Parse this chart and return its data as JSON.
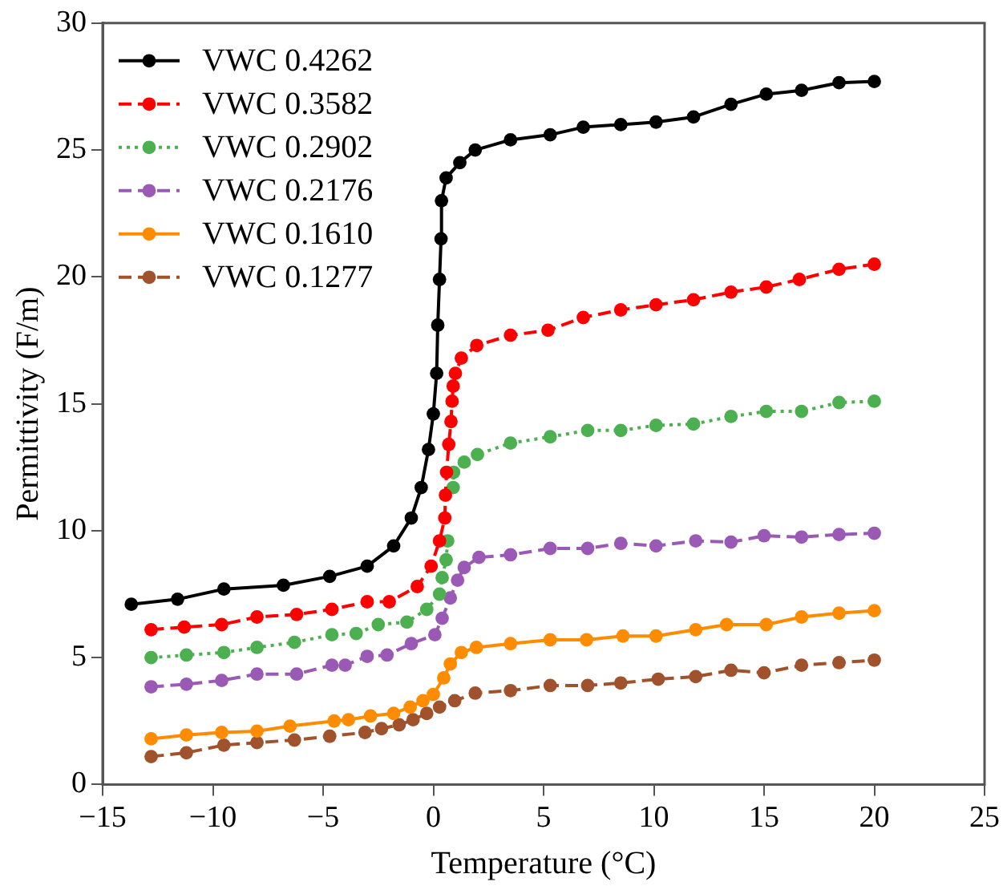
{
  "chart_data": {
    "type": "line",
    "xlabel": "Temperature (°C)",
    "ylabel": "Permittivity (F/m)",
    "xlim": [
      -15,
      25
    ],
    "xticks": [
      -15,
      -10,
      -5,
      0,
      5,
      10,
      15,
      20,
      25
    ],
    "ylim": [
      0,
      30
    ],
    "yticks": [
      0,
      5,
      10,
      15,
      20,
      25,
      30
    ],
    "grid": false,
    "legend": "top left",
    "marker": "circle",
    "series": [
      {
        "name": "VWC 0.4262",
        "color": "#000000",
        "line_style": "solid",
        "x": [
          -13.7,
          -11.6,
          -9.5,
          -6.8,
          -4.7,
          -3.0,
          -1.8,
          -1.0,
          -0.55,
          -0.22,
          0,
          0.15,
          0.2,
          0.28,
          0.35,
          0.37,
          0.58,
          1.2,
          1.9,
          3.5,
          5.3,
          6.8,
          8.5,
          10.1,
          11.8,
          13.5,
          15.1,
          16.7,
          18.4,
          20
        ],
        "values": [
          7.1,
          7.3,
          7.7,
          7.85,
          8.2,
          8.6,
          9.4,
          10.5,
          11.7,
          13.2,
          14.6,
          16.2,
          18.1,
          19.9,
          21.5,
          23.0,
          23.9,
          24.5,
          25.0,
          25.4,
          25.6,
          25.9,
          26.0,
          26.1,
          26.3,
          26.8,
          27.2,
          27.35,
          27.65,
          27.7
        ]
      },
      {
        "name": "VWC 0.3582",
        "color": "#ff0000",
        "line_style": "dashed",
        "x": [
          -12.8,
          -11.3,
          -9.6,
          -8.0,
          -6.2,
          -4.6,
          -3.0,
          -2.0,
          -0.73,
          -0.1,
          0.28,
          0.52,
          0.55,
          0.6,
          0.7,
          0.8,
          0.85,
          0.9,
          1.0,
          1.27,
          1.97,
          3.5,
          5.2,
          6.8,
          8.5,
          10.1,
          11.8,
          13.5,
          15.1,
          16.6,
          18.4,
          20
        ],
        "values": [
          6.1,
          6.2,
          6.3,
          6.6,
          6.7,
          6.9,
          7.2,
          7.2,
          7.8,
          8.6,
          9.6,
          10.5,
          11.4,
          12.3,
          13.4,
          14.3,
          15.1,
          15.7,
          16.2,
          16.8,
          17.3,
          17.7,
          17.9,
          18.4,
          18.7,
          18.9,
          19.1,
          19.4,
          19.6,
          19.9,
          20.3,
          20.5
        ]
      },
      {
        "name": "VWC 0.2902",
        "color": "#4caf50",
        "line_style": "dotted",
        "x": [
          -12.8,
          -11.2,
          -9.5,
          -8.0,
          -6.3,
          -4.6,
          -3.5,
          -2.5,
          -1.2,
          -0.3,
          0.28,
          0.4,
          0.58,
          0.65,
          0.75,
          0.9,
          0.92,
          1.4,
          2.0,
          3.5,
          5.3,
          7.0,
          8.5,
          10.1,
          11.8,
          13.5,
          15.1,
          16.7,
          18.4,
          20
        ],
        "values": [
          5.0,
          5.1,
          5.2,
          5.4,
          5.6,
          5.9,
          5.95,
          6.3,
          6.4,
          6.9,
          7.5,
          8.15,
          8.85,
          9.6,
          null,
          11.7,
          12.3,
          12.7,
          13.0,
          13.45,
          13.7,
          13.95,
          13.95,
          14.15,
          14.2,
          14.5,
          14.7,
          14.7,
          15.05,
          15.1
        ]
      },
      {
        "name": "VWC 0.2176",
        "color": "#9b59b6",
        "line_style": "dashed",
        "x": [
          -12.8,
          -11.2,
          -9.6,
          -8.0,
          -6.2,
          -4.6,
          -4.0,
          -3.0,
          -2.1,
          -1.0,
          0.07,
          0.4,
          0.77,
          1.1,
          1.4,
          2.07,
          3.5,
          5.3,
          7.0,
          8.5,
          10.1,
          11.9,
          13.5,
          15.0,
          16.7,
          18.4,
          20
        ],
        "values": [
          3.85,
          3.95,
          4.1,
          4.35,
          4.35,
          4.7,
          4.7,
          5.05,
          5.1,
          5.55,
          5.9,
          6.55,
          7.35,
          8.05,
          8.55,
          8.95,
          9.05,
          9.3,
          9.3,
          9.5,
          9.4,
          9.6,
          9.55,
          9.8,
          9.75,
          9.85,
          9.9
        ]
      },
      {
        "name": "VWC 0.1610",
        "color": "#ff8c00",
        "line_style": "solid",
        "x": [
          -12.8,
          -11.2,
          -9.6,
          -8.0,
          -6.5,
          -4.5,
          -3.85,
          -2.85,
          -1.8,
          -1.05,
          -0.47,
          0,
          0.47,
          0.77,
          1.27,
          1.95,
          3.5,
          5.3,
          6.95,
          8.6,
          10.1,
          11.9,
          13.3,
          15.1,
          16.7,
          18.4,
          20
        ],
        "values": [
          1.8,
          1.95,
          2.05,
          2.1,
          2.3,
          2.5,
          2.55,
          2.7,
          2.8,
          3.05,
          3.3,
          3.55,
          4.2,
          4.75,
          5.2,
          5.4,
          5.55,
          5.7,
          5.7,
          5.85,
          5.85,
          6.1,
          6.3,
          6.3,
          6.6,
          6.75,
          6.85
        ]
      },
      {
        "name": "VWC 0.1277",
        "color": "#a0522d",
        "line_style": "dashed",
        "x": [
          -12.8,
          -11.2,
          -9.5,
          -8.0,
          -6.3,
          -4.7,
          -3.1,
          -2.35,
          -1.55,
          -0.92,
          -0.3,
          0.28,
          0.97,
          1.9,
          3.5,
          5.3,
          7.0,
          8.5,
          10.2,
          11.9,
          13.5,
          15.0,
          16.7,
          18.4,
          20
        ],
        "values": [
          1.1,
          1.25,
          1.55,
          1.65,
          1.75,
          1.9,
          2.05,
          2.2,
          2.35,
          2.55,
          2.8,
          3.05,
          3.3,
          3.6,
          3.7,
          3.9,
          3.9,
          4.0,
          4.15,
          4.25,
          4.5,
          4.4,
          4.7,
          4.8,
          4.9
        ]
      }
    ]
  }
}
